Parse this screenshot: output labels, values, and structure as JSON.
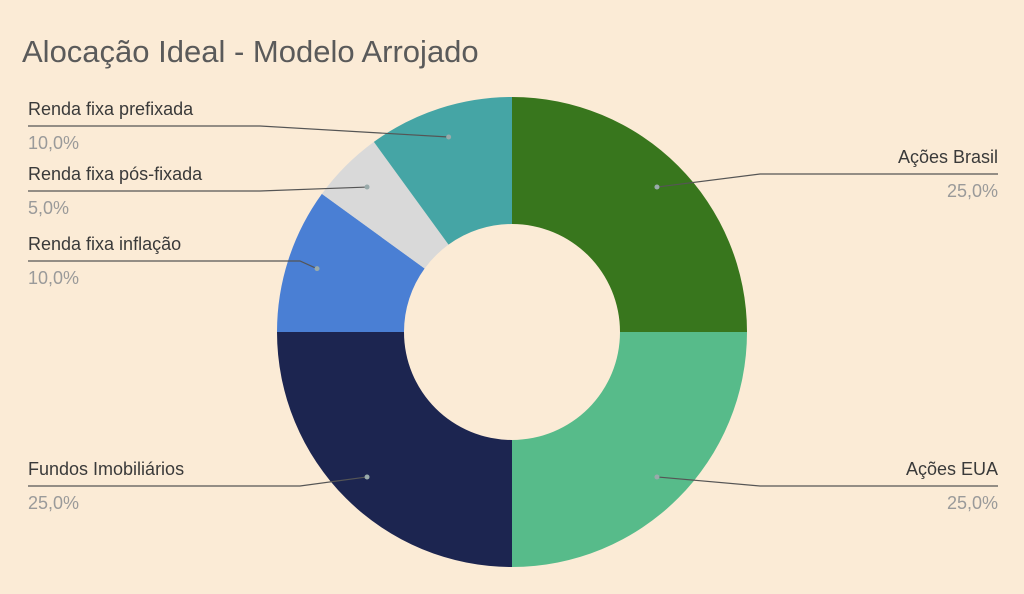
{
  "chart_data": {
    "type": "donut",
    "title": "Alocação Ideal - Modelo Arrojado",
    "categories": [
      "Ações Brasil",
      "Ações EUA",
      "Fundos Imobiliários",
      "Renda fixa inflação",
      "Renda fixa pós-fixada",
      "Renda fixa prefixada"
    ],
    "values": [
      25,
      25,
      25,
      10,
      5,
      10
    ],
    "value_labels": [
      "25,0%",
      "25,0%",
      "25,0%",
      "10,0%",
      "5,0%",
      "10,0%"
    ],
    "colors": [
      "#38761d",
      "#57bb8a",
      "#1c2550",
      "#4a7fd4",
      "#d9d9d9",
      "#45a5a5"
    ]
  }
}
